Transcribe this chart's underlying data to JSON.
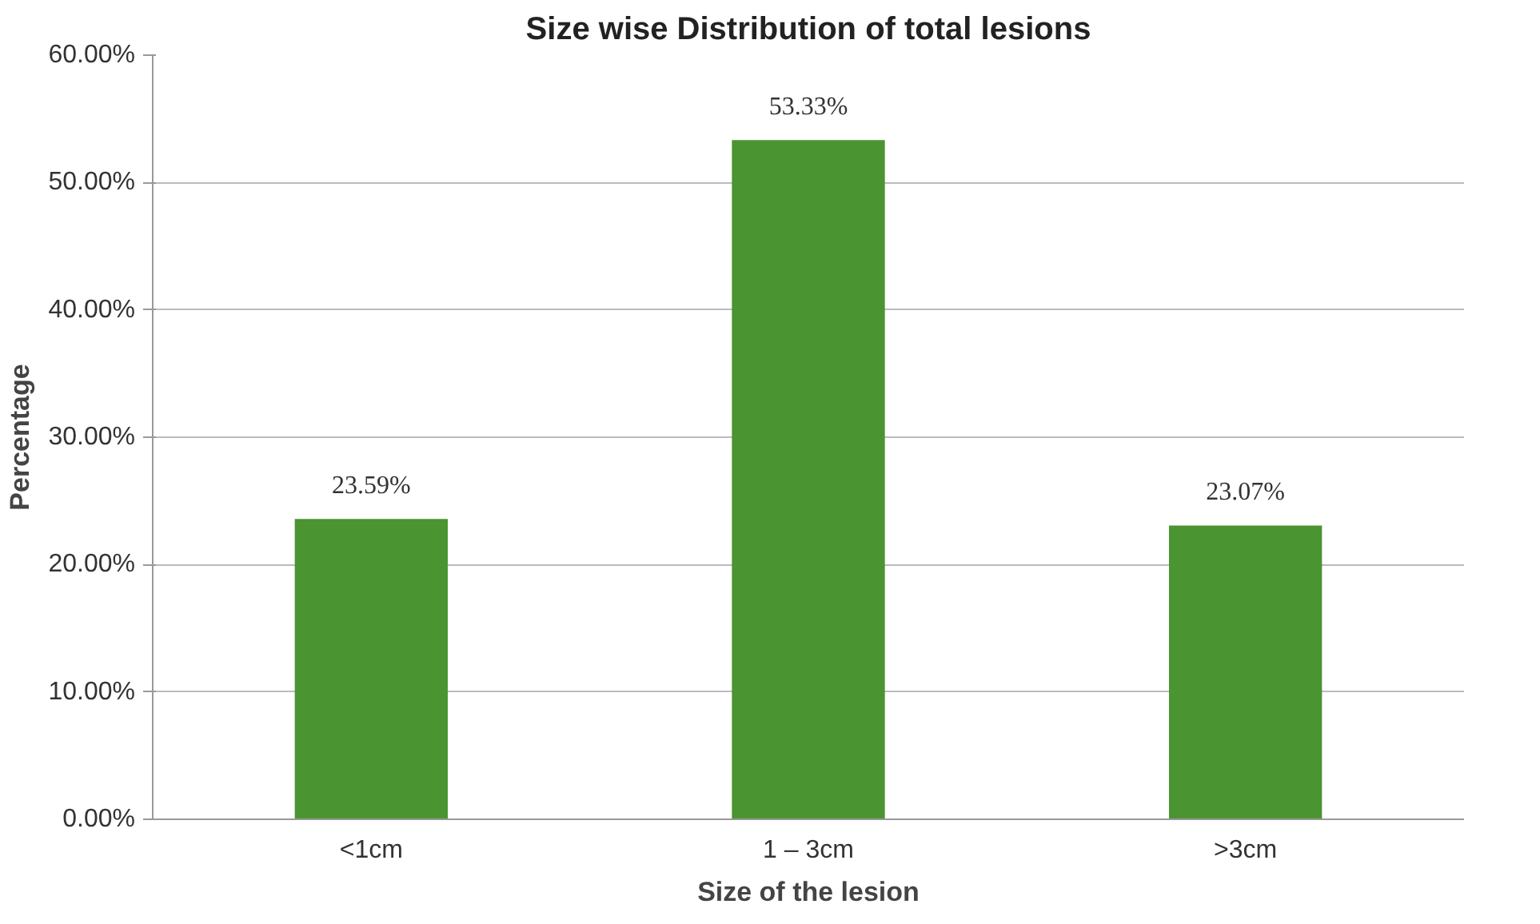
{
  "chart_data": {
    "type": "bar",
    "title": "Size wise Distribution of total lesions",
    "xlabel": "Size of the lesion",
    "ylabel": "Percentage",
    "categories": [
      "<1cm",
      "1 – 3cm",
      ">3cm"
    ],
    "values": [
      23.59,
      53.33,
      23.07
    ],
    "value_labels": [
      "23.59%",
      "53.33%",
      "23.07%"
    ],
    "color": "#4a9432",
    "ylim": [
      0,
      60
    ],
    "yticks": [
      {
        "value": 0,
        "label": "0.00%"
      },
      {
        "value": 10,
        "label": "10.00%"
      },
      {
        "value": 20,
        "label": "20.00%"
      },
      {
        "value": 30,
        "label": "30.00%"
      },
      {
        "value": 40,
        "label": "40.00%"
      },
      {
        "value": 50,
        "label": "50.00%"
      },
      {
        "value": 60,
        "label": "60.00%"
      }
    ],
    "grid": "y"
  }
}
